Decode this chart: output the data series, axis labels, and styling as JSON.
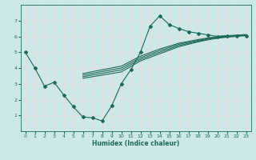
{
  "xlabel": "Humidex (Indice chaleur)",
  "bg_color": "#cce8e8",
  "grid_color": "#b0d8d8",
  "line_color": "#1a6b5a",
  "xlim": [
    -0.5,
    23.5
  ],
  "ylim": [
    0,
    8
  ],
  "xticks": [
    0,
    1,
    2,
    3,
    4,
    5,
    6,
    7,
    8,
    9,
    10,
    11,
    12,
    13,
    14,
    15,
    16,
    17,
    18,
    19,
    20,
    21,
    22,
    23
  ],
  "yticks": [
    1,
    2,
    3,
    4,
    5,
    6,
    7
  ],
  "line1_x": [
    0,
    1,
    2,
    3,
    4,
    5,
    6,
    7,
    8,
    9,
    10,
    11,
    12,
    13,
    14,
    15,
    16,
    17,
    18,
    19,
    20,
    21,
    22,
    23
  ],
  "line1_y": [
    5.0,
    4.0,
    2.85,
    3.1,
    2.3,
    1.55,
    0.9,
    0.85,
    0.65,
    1.6,
    3.0,
    3.9,
    5.0,
    6.65,
    7.3,
    6.75,
    6.5,
    6.3,
    6.2,
    6.1,
    6.0,
    6.05,
    6.05,
    6.05
  ],
  "smooth_x": [
    6,
    10,
    12,
    14,
    16,
    18,
    19,
    20,
    21,
    22,
    23
  ],
  "smooth_lines_y": [
    [
      3.35,
      3.75,
      4.45,
      4.9,
      5.35,
      5.65,
      5.78,
      5.88,
      5.95,
      6.0,
      6.05
    ],
    [
      3.45,
      3.88,
      4.55,
      5.0,
      5.42,
      5.7,
      5.82,
      5.92,
      5.98,
      6.03,
      6.08
    ],
    [
      3.55,
      4.0,
      4.65,
      5.1,
      5.5,
      5.75,
      5.86,
      5.96,
      6.01,
      6.06,
      6.1
    ],
    [
      3.65,
      4.12,
      4.75,
      5.2,
      5.57,
      5.8,
      5.9,
      5.99,
      6.04,
      6.08,
      6.12
    ]
  ]
}
